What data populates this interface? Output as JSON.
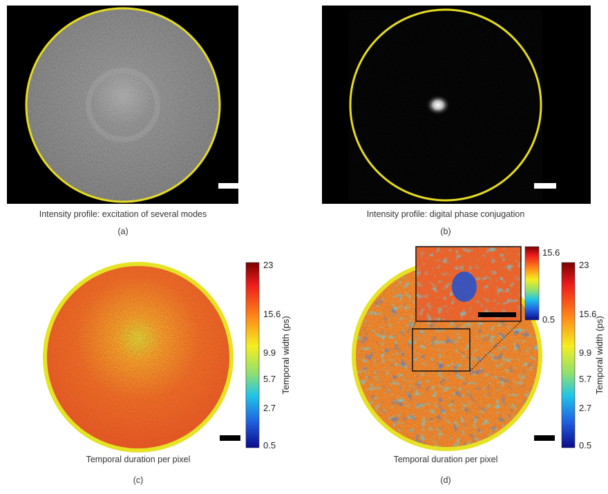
{
  "panels": [
    {
      "label": "(a)",
      "caption": "Intensity profile: excitation of several modes"
    },
    {
      "label": "(b)",
      "caption": "Intensity profile: digital phase conjugation"
    },
    {
      "label": "(c)",
      "caption": "Temporal duration per pixel",
      "colorbar": {
        "title": "Temporal width (ps)",
        "ticks": [
          23,
          15.6,
          9.9,
          5.7,
          2.7,
          0.5
        ]
      }
    },
    {
      "label": "(d)",
      "caption": "Temporal duration per pixel",
      "colorbar": {
        "title": "Temporal width (ps)",
        "ticks": [
          23,
          15.6,
          9.9,
          5.7,
          2.7,
          0.5
        ]
      },
      "inset_colorbar": {
        "ticks": [
          15.6,
          0.5
        ]
      }
    }
  ]
}
